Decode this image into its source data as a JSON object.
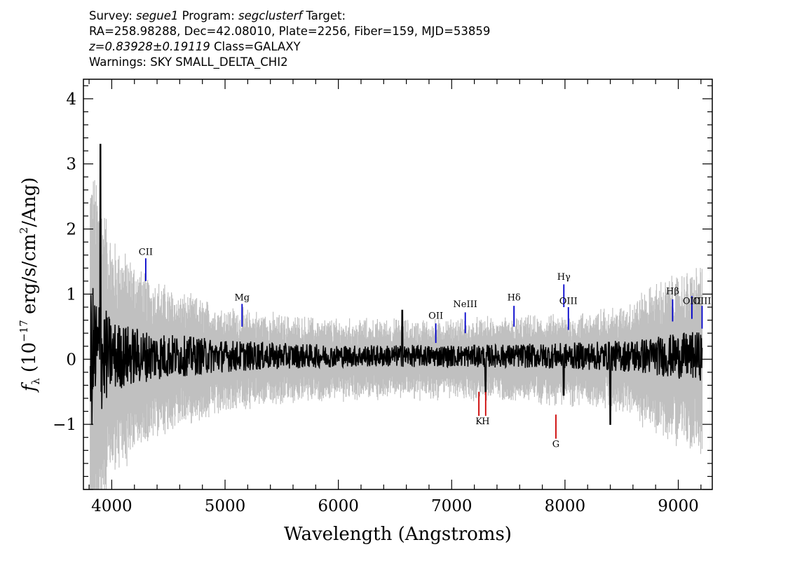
{
  "header": {
    "survey_label": "Survey:",
    "survey": "segue1",
    "program_label": "Program:",
    "program": "segclusterf",
    "target_label": "Target:",
    "line2": "RA=258.98288, Dec=42.08010, Plate=2256, Fiber=159, MJD=53859",
    "redshift": "z=0.83928±0.19119",
    "class_text": "Class=GALAXY",
    "warnings": "Warnings: SKY SMALL_DELTA_CHI2"
  },
  "chart_data": {
    "type": "line",
    "title": "",
    "xlabel": "Wavelength (Angstroms)",
    "ylabel": "f_λ (10^-17 erg/s/cm^2/Ang)",
    "ylabel_parts": {
      "f": "f",
      "sub": "λ",
      "pre": "(10",
      "exp": "−17",
      "mid": " erg/s/cm",
      "exp2": "2",
      "post": "/Ang)"
    },
    "xlim": [
      3750,
      9300
    ],
    "ylim": [
      -2.0,
      4.3
    ],
    "xticks": [
      4000,
      5000,
      6000,
      7000,
      8000,
      9000
    ],
    "xtick_labels": [
      "4000",
      "5000",
      "6000",
      "7000",
      "8000",
      "9000"
    ],
    "yticks": [
      -1,
      0,
      1,
      2,
      3,
      4
    ],
    "ytick_labels": [
      "−1",
      "0",
      "1",
      "2",
      "3",
      "4"
    ],
    "grid": false,
    "series": [
      {
        "role": "error-envelope",
        "color": "#c0c0c0",
        "envelope": {
          "x": [
            3800,
            3900,
            4000,
            4300,
            4600,
            5000,
            5500,
            6000,
            6500,
            7000,
            7500,
            8000,
            8500,
            8800,
            9000,
            9200
          ],
          "amp": [
            2.2,
            1.8,
            1.3,
            0.9,
            0.7,
            0.55,
            0.45,
            0.4,
            0.4,
            0.4,
            0.42,
            0.45,
            0.55,
            0.8,
            0.9,
            1.0
          ]
        }
      },
      {
        "role": "flux",
        "color": "#000000",
        "envelope": {
          "x": [
            3800,
            3900,
            4000,
            4300,
            4600,
            5000,
            5500,
            6000,
            6500,
            7000,
            7500,
            8000,
            8500,
            8800,
            9000,
            9200
          ],
          "amp": [
            1.2,
            0.9,
            0.55,
            0.4,
            0.32,
            0.25,
            0.2,
            0.17,
            0.17,
            0.17,
            0.18,
            0.2,
            0.24,
            0.3,
            0.35,
            0.38
          ]
        },
        "features": [
          {
            "x": 3900,
            "y": 3.3
          },
          {
            "x": 6563,
            "y": 0.75
          },
          {
            "x": 7300,
            "y": -0.5
          },
          {
            "x": 7990,
            "y": -0.55
          },
          {
            "x": 8400,
            "y": -1.0
          }
        ]
      }
    ],
    "emission_lines": [
      {
        "label": "CII",
        "x": 4300,
        "y1": 1.2,
        "y2": 1.55,
        "label_y": 1.6
      },
      {
        "label": "Mg",
        "x": 5150,
        "y1": 0.5,
        "y2": 0.85,
        "label_y": 0.9
      },
      {
        "label": "OII",
        "x": 6860,
        "y1": 0.25,
        "y2": 0.55,
        "label_y": 0.62
      },
      {
        "label": "NeIII",
        "x": 7120,
        "y1": 0.4,
        "y2": 0.72,
        "label_y": 0.8
      },
      {
        "label": "Hδ",
        "x": 7550,
        "y1": 0.5,
        "y2": 0.82,
        "label_y": 0.9
      },
      {
        "label": "Hγ",
        "x": 7990,
        "y1": 0.8,
        "y2": 1.15,
        "label_y": 1.22
      },
      {
        "label": "OIII",
        "x": 8030,
        "y1": 0.45,
        "y2": 0.8,
        "label_y": 0.85
      },
      {
        "label": "Hβ",
        "x": 8950,
        "y1": 0.58,
        "y2": 0.92,
        "label_y": 1.0
      },
      {
        "label": "OIII",
        "x": 9120,
        "y1": 0.62,
        "y2": 0.97,
        "label_y": 0.85
      },
      {
        "label": "OIII",
        "x": 9210,
        "y1": 0.47,
        "y2": 0.82,
        "label_y": 0.85
      }
    ],
    "absorption_lines": [
      {
        "label": "K",
        "x": 7240,
        "y1": -0.5,
        "y2": -0.87,
        "label_y": -1.0
      },
      {
        "label": "H",
        "x": 7300,
        "y1": -0.5,
        "y2": -0.87,
        "label_y": -1.0
      },
      {
        "label": "G",
        "x": 7920,
        "y1": -0.85,
        "y2": -1.22,
        "label_y": -1.35
      }
    ],
    "colors": {
      "emission": "#0000cc",
      "absorption": "#cc0000",
      "flux": "#000000",
      "error": "#c0c0c0"
    }
  }
}
